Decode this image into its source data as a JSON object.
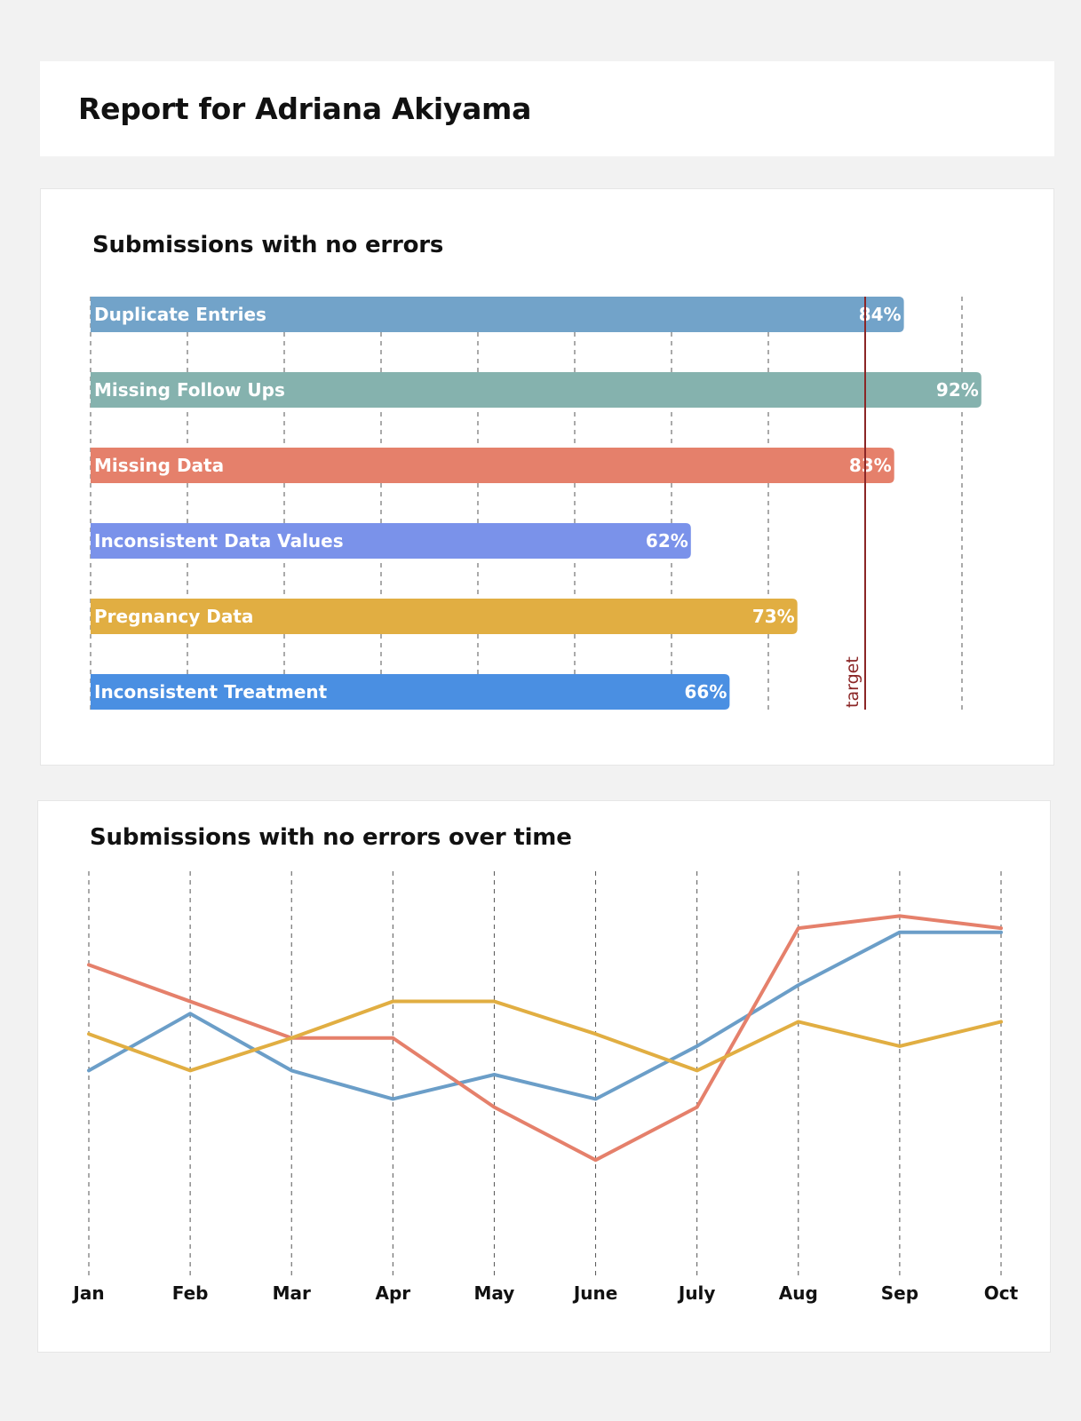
{
  "header": {
    "title": "Report for Adriana Akiyama"
  },
  "chart_data": [
    {
      "type": "bar",
      "orientation": "horizontal",
      "title": "Submissions with no errors",
      "categories": [
        "Duplicate Entries",
        "Missing Follow Ups",
        "Missing Data",
        "Inconsistent Data Values",
        "Pregnancy Data",
        "Inconsistent Treatment"
      ],
      "values": [
        84,
        92,
        83,
        62,
        73,
        66
      ],
      "value_labels": [
        "84%",
        "92%",
        "83%",
        "62%",
        "73%",
        "66%"
      ],
      "colors": [
        "#72a3c9",
        "#85b2ae",
        "#e5806b",
        "#7a92ea",
        "#e1ae42",
        "#4a8fe2"
      ],
      "xlim": [
        0,
        100
      ],
      "grid": "vertical-dashed",
      "target": {
        "value": 80,
        "label": "target",
        "color": "#8b2626"
      }
    },
    {
      "type": "line",
      "title": "Submissions with no errors over time",
      "x": [
        "Jan",
        "Feb",
        "Mar",
        "Apr",
        "May",
        "June",
        "July",
        "Aug",
        "Sep",
        "Oct"
      ],
      "ylim": [
        0,
        100
      ],
      "grid": "vertical-dashed",
      "series": [
        {
          "color": "#6b9ec8",
          "values": [
            51,
            65,
            51,
            44,
            50,
            44,
            57,
            72,
            85,
            85
          ]
        },
        {
          "color": "#e5806b",
          "values": [
            77,
            68,
            59,
            59,
            42,
            29,
            42,
            86,
            89,
            86
          ]
        },
        {
          "color": "#e1ae42",
          "values": [
            60,
            51,
            59,
            68,
            68,
            60,
            51,
            63,
            57,
            63
          ]
        }
      ]
    }
  ]
}
